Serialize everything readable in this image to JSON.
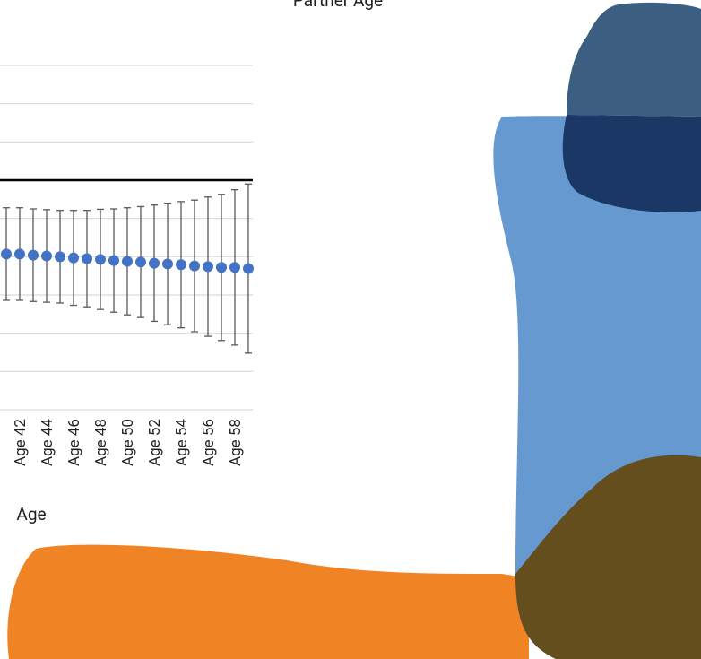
{
  "chart_data": {
    "type": "errorbar",
    "title": "Partner Age",
    "x_label": "Age",
    "categories": [
      null,
      "Age 42",
      null,
      "Age 44",
      null,
      "Age 46",
      null,
      "Age 48",
      null,
      "Age 50",
      null,
      "Age 52",
      null,
      "Age 54",
      null,
      "Age 56",
      null,
      "Age 58",
      null
    ],
    "values": [
      -1.93,
      -1.93,
      -1.96,
      -1.98,
      -2.0,
      -2.03,
      -2.05,
      -2.07,
      -2.1,
      -2.12,
      -2.14,
      -2.17,
      -2.19,
      -2.21,
      -2.24,
      -2.26,
      -2.28,
      -2.28,
      -2.31
    ],
    "errors": [
      1.21,
      1.21,
      1.21,
      1.21,
      1.21,
      1.24,
      1.26,
      1.31,
      1.35,
      1.4,
      1.45,
      1.52,
      1.59,
      1.65,
      1.72,
      1.82,
      1.91,
      2.03,
      2.21
    ],
    "color": "#4472c4",
    "error_color": "#595959",
    "ylim": [
      -6,
      3
    ],
    "yticks": [
      -6,
      -5,
      -4,
      -3,
      -2,
      -1,
      0,
      1,
      2,
      3
    ],
    "grid": true
  }
}
